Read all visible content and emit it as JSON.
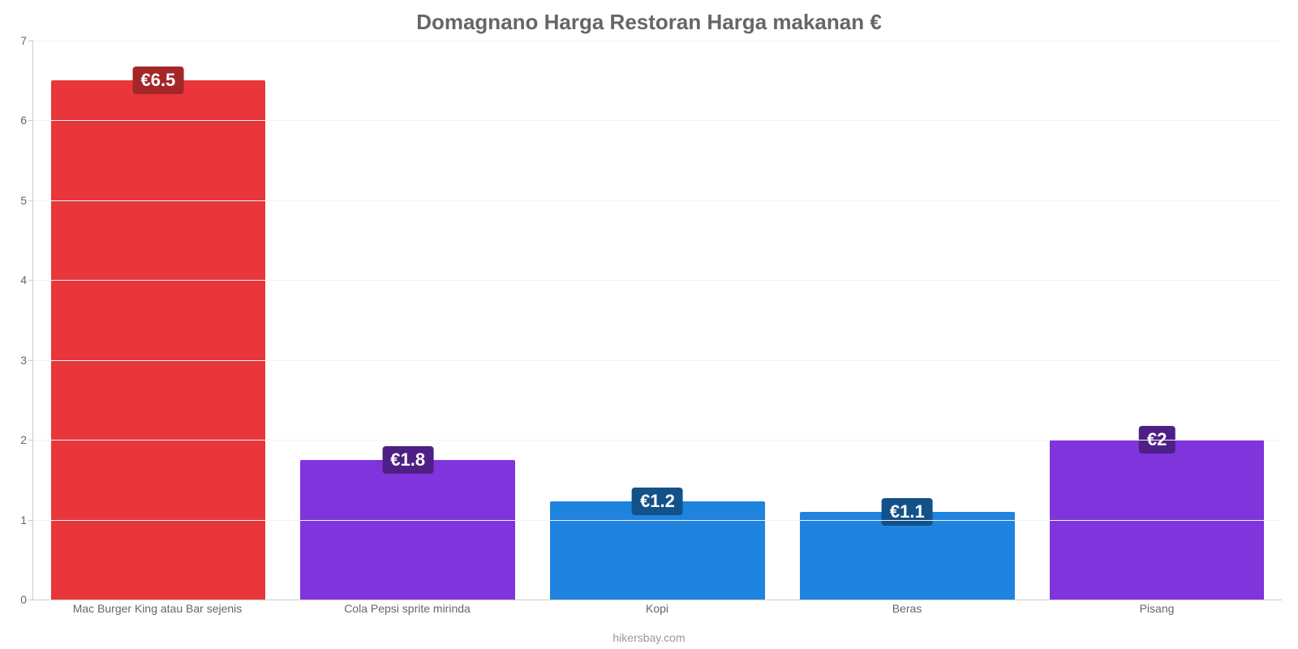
{
  "chart": {
    "type": "bar",
    "title": "Domagnano Harga Restoran Harga makanan €",
    "title_fontsize": 26,
    "title_color": "#666666",
    "credit": "hikersbay.com",
    "credit_color": "#999999",
    "background_color": "#ffffff",
    "axis_color": "#cccccc",
    "grid_color": "#f2f2f2",
    "tick_label_color": "#666666",
    "tick_fontsize": 14,
    "ylim": [
      0,
      7
    ],
    "ytick_step": 1,
    "yticks": [
      0,
      1,
      2,
      3,
      4,
      5,
      6,
      7
    ],
    "bar_width_pct": 86,
    "value_badge_fontsize": 22,
    "categories": [
      "Mac Burger King atau Bar sejenis",
      "Cola Pepsi sprite mirinda",
      "Kopi",
      "Beras",
      "Pisang"
    ],
    "values": [
      6.5,
      1.75,
      1.23,
      1.1,
      2.0
    ],
    "value_labels": [
      "€6.5",
      "€1.8",
      "€1.2",
      "€1.1",
      "€2"
    ],
    "bar_colors": [
      "#e8363a",
      "#8034dc",
      "#1f83e0",
      "#1f83e0",
      "#8034dc"
    ],
    "badge_bg_colors": [
      "#a52628",
      "#4e2086",
      "#135189",
      "#135189",
      "#4e2086"
    ]
  }
}
